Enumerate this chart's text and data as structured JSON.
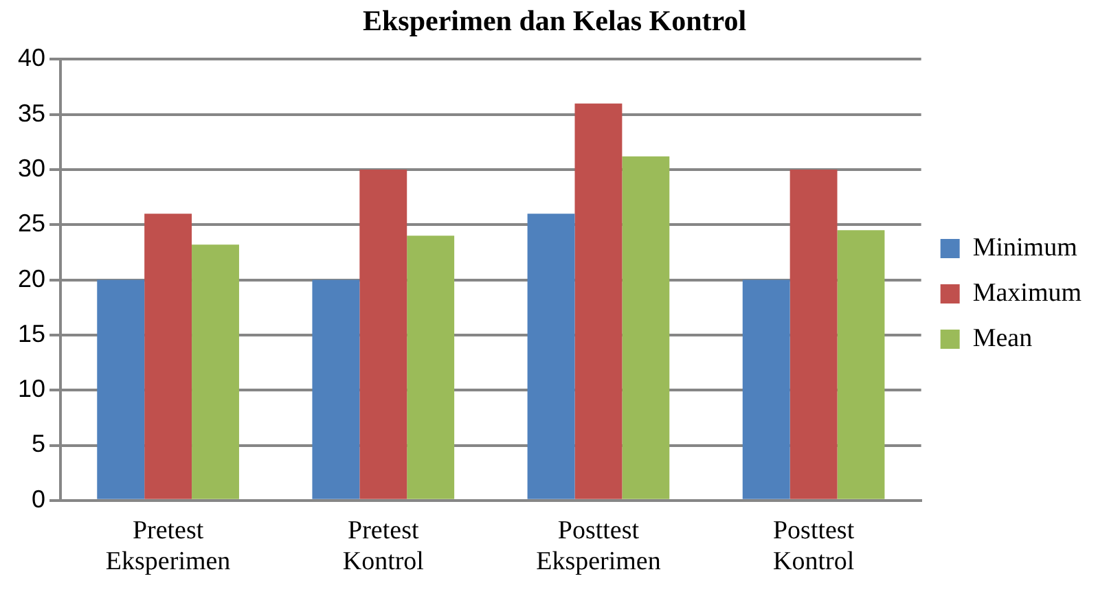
{
  "chart_data": {
    "type": "bar",
    "title": "Eksperimen dan Kelas Kontrol",
    "categories": [
      "Pretest Eksperimen",
      "Pretest Kontrol",
      "Posttest Eksperimen",
      "Posttest Kontrol"
    ],
    "series": [
      {
        "name": "Minimum",
        "color": "#4f81bd",
        "values": [
          20,
          20,
          26,
          20
        ]
      },
      {
        "name": "Maximum",
        "color": "#c0504d",
        "values": [
          26,
          30,
          36,
          30
        ]
      },
      {
        "name": "Mean",
        "color": "#9bbb59",
        "values": [
          23.2,
          24,
          31.2,
          24.5
        ]
      }
    ],
    "ylim": [
      0,
      40
    ],
    "yticks": [
      0,
      5,
      10,
      15,
      20,
      25,
      30,
      35,
      40
    ],
    "grid": "y",
    "legend": "right"
  }
}
